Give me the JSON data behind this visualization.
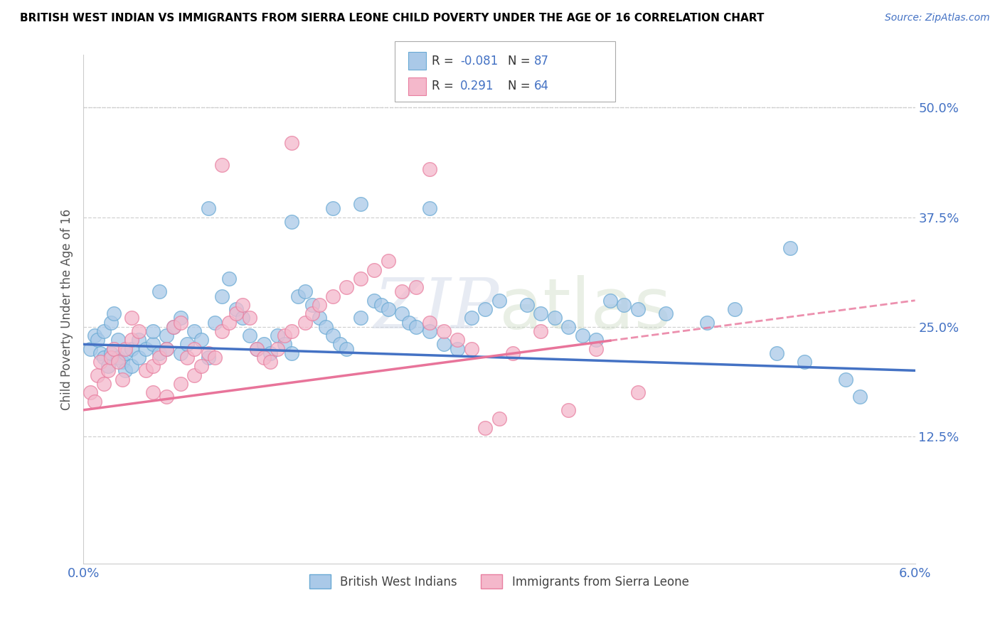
{
  "title": "BRITISH WEST INDIAN VS IMMIGRANTS FROM SIERRA LEONE CHILD POVERTY UNDER THE AGE OF 16 CORRELATION CHART",
  "source": "Source: ZipAtlas.com",
  "ylabel": "Child Poverty Under the Age of 16",
  "xlim": [
    0.0,
    6.0
  ],
  "ylim": [
    -2.0,
    56.0
  ],
  "xticks": [
    0.0,
    1.0,
    2.0,
    3.0,
    4.0,
    5.0,
    6.0
  ],
  "xticklabels": [
    "0.0%",
    "",
    "",
    "",
    "",
    "",
    "6.0%"
  ],
  "yticks": [
    12.5,
    25.0,
    37.5,
    50.0
  ],
  "yticklabels": [
    "12.5%",
    "25.0%",
    "37.5%",
    "50.0%"
  ],
  "blue_R": -0.081,
  "blue_N": 87,
  "pink_R": 0.291,
  "pink_N": 64,
  "blue_color": "#aac9e8",
  "pink_color": "#f4b8cb",
  "blue_edge": "#6aaad4",
  "pink_edge": "#e87fa0",
  "trend_blue_color": "#4472c4",
  "trend_pink_color": "#e8749a",
  "blue_scatter": [
    [
      0.05,
      22.5
    ],
    [
      0.08,
      24.0
    ],
    [
      0.1,
      23.5
    ],
    [
      0.12,
      22.0
    ],
    [
      0.15,
      21.5
    ],
    [
      0.15,
      24.5
    ],
    [
      0.18,
      20.5
    ],
    [
      0.2,
      22.0
    ],
    [
      0.2,
      25.5
    ],
    [
      0.22,
      26.5
    ],
    [
      0.25,
      23.5
    ],
    [
      0.25,
      21.5
    ],
    [
      0.28,
      21.0
    ],
    [
      0.3,
      20.0
    ],
    [
      0.3,
      22.0
    ],
    [
      0.35,
      20.5
    ],
    [
      0.35,
      22.5
    ],
    [
      0.4,
      21.5
    ],
    [
      0.4,
      23.5
    ],
    [
      0.45,
      22.5
    ],
    [
      0.5,
      23.0
    ],
    [
      0.5,
      24.5
    ],
    [
      0.55,
      22.0
    ],
    [
      0.55,
      29.0
    ],
    [
      0.6,
      22.5
    ],
    [
      0.6,
      24.0
    ],
    [
      0.65,
      25.0
    ],
    [
      0.7,
      22.0
    ],
    [
      0.7,
      26.0
    ],
    [
      0.75,
      23.0
    ],
    [
      0.8,
      24.5
    ],
    [
      0.85,
      23.5
    ],
    [
      0.9,
      21.5
    ],
    [
      0.9,
      38.5
    ],
    [
      0.95,
      25.5
    ],
    [
      1.0,
      28.5
    ],
    [
      1.05,
      30.5
    ],
    [
      1.1,
      27.0
    ],
    [
      1.15,
      26.0
    ],
    [
      1.2,
      24.0
    ],
    [
      1.25,
      22.5
    ],
    [
      1.3,
      23.0
    ],
    [
      1.35,
      22.0
    ],
    [
      1.4,
      24.0
    ],
    [
      1.45,
      23.0
    ],
    [
      1.5,
      22.0
    ],
    [
      1.5,
      37.0
    ],
    [
      1.55,
      28.5
    ],
    [
      1.6,
      29.0
    ],
    [
      1.65,
      27.5
    ],
    [
      1.7,
      26.0
    ],
    [
      1.75,
      25.0
    ],
    [
      1.8,
      24.0
    ],
    [
      1.8,
      38.5
    ],
    [
      1.85,
      23.0
    ],
    [
      1.9,
      22.5
    ],
    [
      2.0,
      26.0
    ],
    [
      2.0,
      39.0
    ],
    [
      2.1,
      28.0
    ],
    [
      2.15,
      27.5
    ],
    [
      2.2,
      27.0
    ],
    [
      2.3,
      26.5
    ],
    [
      2.35,
      25.5
    ],
    [
      2.4,
      25.0
    ],
    [
      2.5,
      24.5
    ],
    [
      2.5,
      38.5
    ],
    [
      2.6,
      23.0
    ],
    [
      2.7,
      22.5
    ],
    [
      2.8,
      26.0
    ],
    [
      2.9,
      27.0
    ],
    [
      3.0,
      28.0
    ],
    [
      3.2,
      27.5
    ],
    [
      3.3,
      26.5
    ],
    [
      3.4,
      26.0
    ],
    [
      3.5,
      25.0
    ],
    [
      3.6,
      24.0
    ],
    [
      3.7,
      23.5
    ],
    [
      3.8,
      28.0
    ],
    [
      3.9,
      27.5
    ],
    [
      4.0,
      27.0
    ],
    [
      4.2,
      26.5
    ],
    [
      4.5,
      25.5
    ],
    [
      4.7,
      27.0
    ],
    [
      5.0,
      22.0
    ],
    [
      5.1,
      34.0
    ],
    [
      5.2,
      21.0
    ],
    [
      5.5,
      19.0
    ],
    [
      5.6,
      17.0
    ]
  ],
  "pink_scatter": [
    [
      0.05,
      17.5
    ],
    [
      0.08,
      16.5
    ],
    [
      0.1,
      19.5
    ],
    [
      0.12,
      21.0
    ],
    [
      0.15,
      18.5
    ],
    [
      0.18,
      20.0
    ],
    [
      0.2,
      21.5
    ],
    [
      0.22,
      22.5
    ],
    [
      0.25,
      21.0
    ],
    [
      0.28,
      19.0
    ],
    [
      0.3,
      22.5
    ],
    [
      0.35,
      23.5
    ],
    [
      0.35,
      26.0
    ],
    [
      0.4,
      24.5
    ],
    [
      0.45,
      20.0
    ],
    [
      0.5,
      17.5
    ],
    [
      0.5,
      20.5
    ],
    [
      0.55,
      21.5
    ],
    [
      0.6,
      17.0
    ],
    [
      0.6,
      22.5
    ],
    [
      0.65,
      25.0
    ],
    [
      0.7,
      18.5
    ],
    [
      0.7,
      25.5
    ],
    [
      0.75,
      21.5
    ],
    [
      0.8,
      19.5
    ],
    [
      0.8,
      22.5
    ],
    [
      0.85,
      20.5
    ],
    [
      0.9,
      22.0
    ],
    [
      0.95,
      21.5
    ],
    [
      1.0,
      24.5
    ],
    [
      1.0,
      43.5
    ],
    [
      1.05,
      25.5
    ],
    [
      1.1,
      26.5
    ],
    [
      1.15,
      27.5
    ],
    [
      1.2,
      26.0
    ],
    [
      1.25,
      22.5
    ],
    [
      1.3,
      21.5
    ],
    [
      1.35,
      21.0
    ],
    [
      1.4,
      22.5
    ],
    [
      1.45,
      24.0
    ],
    [
      1.5,
      24.5
    ],
    [
      1.5,
      46.0
    ],
    [
      1.6,
      25.5
    ],
    [
      1.65,
      26.5
    ],
    [
      1.7,
      27.5
    ],
    [
      1.8,
      28.5
    ],
    [
      1.9,
      29.5
    ],
    [
      2.0,
      30.5
    ],
    [
      2.1,
      31.5
    ],
    [
      2.2,
      32.5
    ],
    [
      2.3,
      29.0
    ],
    [
      2.4,
      29.5
    ],
    [
      2.5,
      25.5
    ],
    [
      2.5,
      43.0
    ],
    [
      2.6,
      24.5
    ],
    [
      2.7,
      23.5
    ],
    [
      2.8,
      22.5
    ],
    [
      2.9,
      13.5
    ],
    [
      3.0,
      14.5
    ],
    [
      3.1,
      22.0
    ],
    [
      3.3,
      24.5
    ],
    [
      3.5,
      15.5
    ],
    [
      3.7,
      22.5
    ],
    [
      4.0,
      17.5
    ]
  ],
  "blue_trend_x": [
    0.0,
    6.0
  ],
  "blue_trend_y": [
    23.0,
    20.0
  ],
  "pink_trend_x": [
    0.0,
    6.0
  ],
  "pink_trend_y": [
    15.5,
    28.0
  ]
}
